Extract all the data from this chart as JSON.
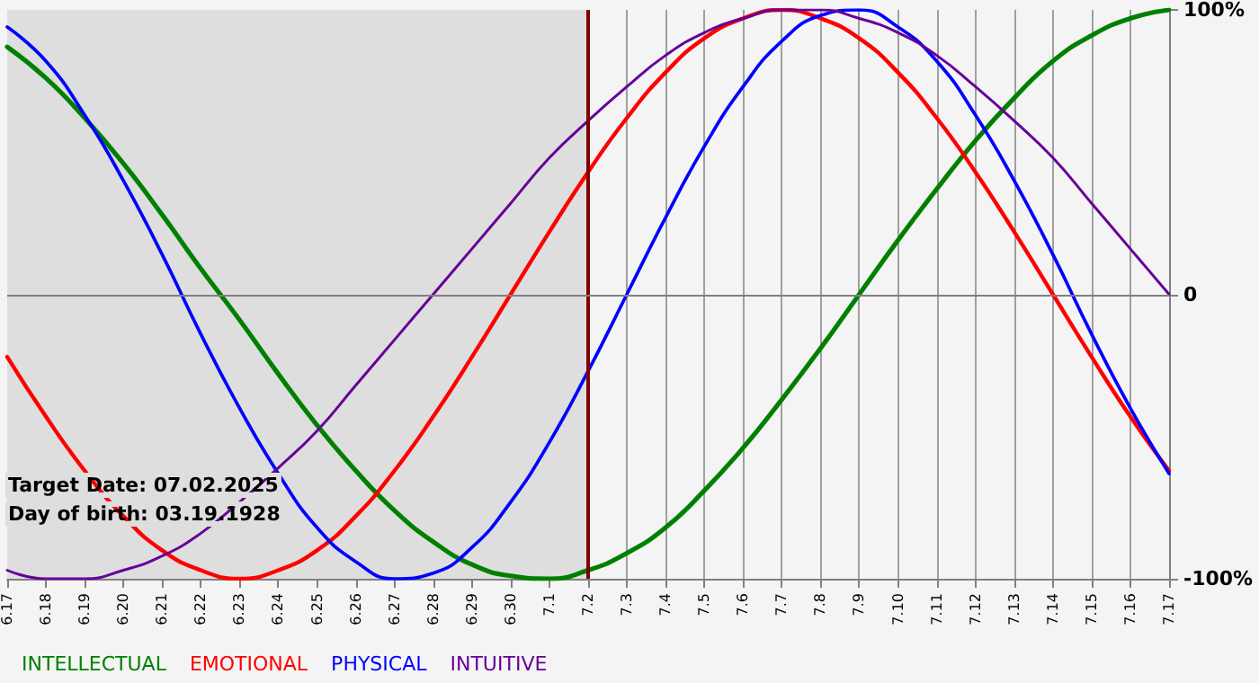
{
  "chart_data": {
    "type": "line",
    "categories": [
      "6.17",
      "6.18",
      "6.19",
      "6.20",
      "6.21",
      "6.22",
      "6.23",
      "6.24",
      "6.25",
      "6.26",
      "6.27",
      "6.28",
      "6.29",
      "6.30",
      "7.1",
      "7.2",
      "7.3",
      "7.4",
      "7.5",
      "7.6",
      "7.7",
      "7.8",
      "7.9",
      "7.10",
      "7.11",
      "7.12",
      "7.13",
      "7.14",
      "7.15",
      "7.16",
      "7.17"
    ],
    "series": [
      {
        "name": "INTELLECTUAL",
        "color": "#008000",
        "values": [
          87,
          76,
          62,
          46,
          28,
          9,
          -9,
          -28,
          -46,
          -62,
          -76,
          -87,
          -95,
          -99,
          -100,
          -97,
          -91,
          -82,
          -69,
          -54,
          -37,
          -19,
          0,
          19,
          37,
          54,
          69,
          82,
          91,
          97,
          100
        ]
      },
      {
        "name": "EMOTIONAL",
        "color": "#ff0000",
        "values": [
          -22,
          -43,
          -62,
          -78,
          -90,
          -97,
          -100,
          -97,
          -90,
          -78,
          -62,
          -43,
          -22,
          0,
          22,
          43,
          62,
          78,
          90,
          97,
          100,
          97,
          90,
          78,
          62,
          43,
          22,
          0,
          -22,
          -43,
          -62
        ]
      },
      {
        "name": "PHYSICAL",
        "color": "#0000ff",
        "values": [
          94,
          82,
          63,
          40,
          14,
          -14,
          -40,
          -63,
          -82,
          -94,
          -100,
          -98,
          -89,
          -73,
          -52,
          -27,
          0,
          27,
          52,
          73,
          89,
          98,
          100,
          94,
          82,
          63,
          40,
          14,
          -14,
          -40,
          -63
        ]
      },
      {
        "name": "INTUITIVE",
        "color": "#660099",
        "values": [
          -97,
          -100,
          -100,
          -97,
          -92,
          -84,
          -73,
          -61,
          -48,
          -32,
          -16,
          0,
          16,
          32,
          48,
          61,
          73,
          84,
          92,
          97,
          100,
          100,
          97,
          92,
          84,
          73,
          61,
          48,
          32,
          16,
          0
        ]
      }
    ],
    "ylim": [
      -100,
      100
    ],
    "yticks": [
      {
        "value": 100,
        "label": "100%"
      },
      0,
      {
        "value": -100,
        "label": "-100%"
      }
    ],
    "grid": "x",
    "legend": "bottom left",
    "marker": "none",
    "line_style": "solid",
    "ref_lines": [
      {
        "axis": "x",
        "value": "7.2",
        "color": "#800000"
      },
      {
        "axis": "y",
        "value": 0,
        "color": "#808080"
      }
    ],
    "bands": [
      {
        "axis": "x",
        "from": "6.17",
        "to": "7.2",
        "color": "#dedede"
      }
    ],
    "annotations": [
      "Target Date: 07.02.2025",
      "Day of birth: 03.19.1928"
    ]
  }
}
